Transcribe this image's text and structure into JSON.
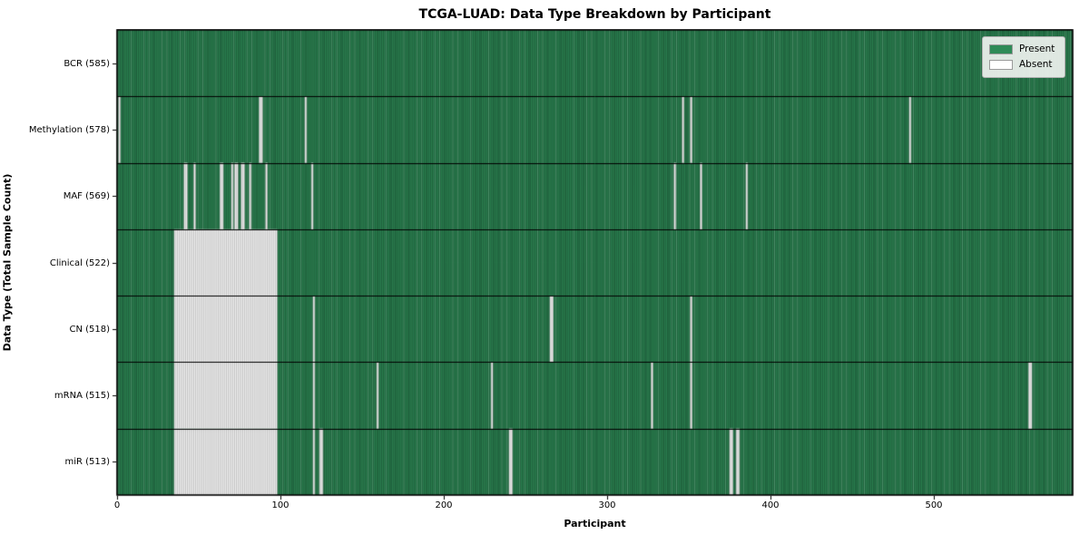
{
  "chart_data": {
    "type": "heatmap",
    "title": "TCGA-LUAD: Data Type Breakdown by Participant",
    "xlabel": "Participant",
    "ylabel": "Data Type (Total Sample Count)",
    "n_participants": 585,
    "xlim": [
      0,
      585
    ],
    "x_ticks": [
      0,
      100,
      200,
      300,
      400,
      500
    ],
    "grid": false,
    "legend": {
      "position": "upper right",
      "entries": [
        {
          "label": "Present",
          "color": "#2e8b57"
        },
        {
          "label": "Absent",
          "color": "#ffffff"
        }
      ]
    },
    "rows": [
      {
        "data_type": "BCR",
        "label": "BCR (585)",
        "present_count": 585,
        "absent_count": 0,
        "absent_ranges": []
      },
      {
        "data_type": "Methylation",
        "label": "Methylation (578)",
        "present_count": 578,
        "absent_count": 7,
        "absent_ranges": [
          [
            1,
            1
          ],
          [
            87,
            88
          ],
          [
            115,
            115
          ],
          [
            346,
            346
          ],
          [
            351,
            351
          ],
          [
            485,
            485
          ]
        ]
      },
      {
        "data_type": "MAF",
        "label": "MAF (569)",
        "present_count": 569,
        "absent_count": 16,
        "absent_ranges": [
          [
            41,
            42
          ],
          [
            47,
            47
          ],
          [
            63,
            64
          ],
          [
            70,
            70
          ],
          [
            72,
            73
          ],
          [
            76,
            77
          ],
          [
            81,
            81
          ],
          [
            91,
            91
          ],
          [
            119,
            119
          ],
          [
            341,
            341
          ],
          [
            357,
            357
          ],
          [
            385,
            385
          ]
        ]
      },
      {
        "data_type": "Clinical",
        "label": "Clinical (522)",
        "present_count": 522,
        "absent_count": 63,
        "absent_ranges": [
          [
            35,
            97
          ]
        ]
      },
      {
        "data_type": "CN",
        "label": "CN (518)",
        "present_count": 518,
        "absent_count": 67,
        "absent_ranges": [
          [
            35,
            97
          ],
          [
            120,
            120
          ],
          [
            265,
            266
          ],
          [
            351,
            351
          ]
        ]
      },
      {
        "data_type": "mRNA",
        "label": "mRNA (515)",
        "present_count": 515,
        "absent_count": 70,
        "absent_ranges": [
          [
            35,
            97
          ],
          [
            120,
            120
          ],
          [
            159,
            159
          ],
          [
            229,
            229
          ],
          [
            327,
            327
          ],
          [
            351,
            351
          ],
          [
            558,
            559
          ]
        ]
      },
      {
        "data_type": "miR",
        "label": "miR (513)",
        "present_count": 513,
        "absent_count": 72,
        "absent_ranges": [
          [
            35,
            97
          ],
          [
            120,
            120
          ],
          [
            124,
            125
          ],
          [
            240,
            241
          ],
          [
            375,
            376
          ],
          [
            379,
            380
          ]
        ]
      }
    ],
    "colors": {
      "present": "#2e8b57",
      "absent": "#ffffff",
      "column_edge": "#1a4631",
      "absent_column_edge": "#9f9f9f",
      "row_separator": "#000000",
      "plot_border": "#000000"
    }
  }
}
